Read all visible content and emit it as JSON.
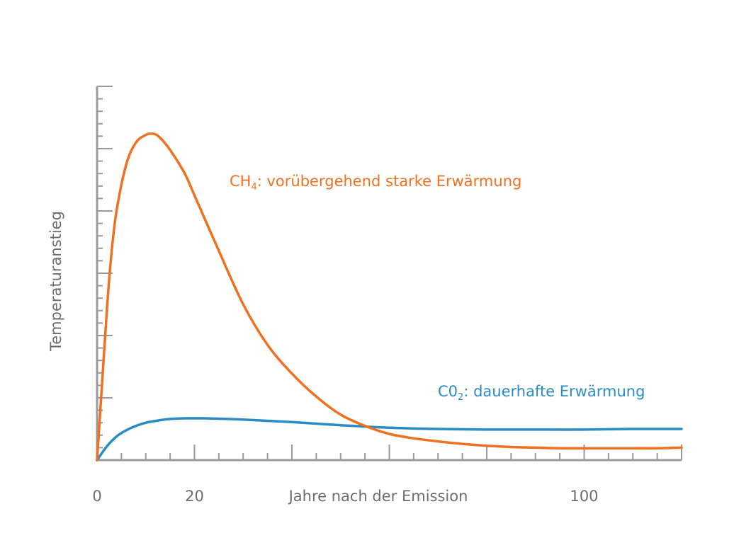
{
  "chart_data": {
    "type": "line",
    "xlabel": "Jahre nach der Emission",
    "ylabel": "Temperaturanstieg",
    "xlim": [
      0,
      120
    ],
    "ylim": [
      0,
      6
    ],
    "x_tick_labels": [
      {
        "value": 0,
        "label": "0"
      },
      {
        "value": 20,
        "label": "20"
      },
      {
        "value": 100,
        "label": "100"
      }
    ],
    "x_minor_step": 5,
    "x_major_step": 20,
    "y_minor_step": 0.2,
    "y_major_step": 1,
    "grid": false,
    "series": [
      {
        "name": "CH",
        "subscript": "4",
        "suffix": ": vorübergehend starke Erwärmung",
        "color": "#f07022",
        "x": [
          0,
          1,
          2,
          3,
          4,
          6,
          8,
          10,
          11,
          12,
          13,
          15,
          18,
          20,
          25,
          30,
          35,
          40,
          45,
          50,
          55,
          60,
          65,
          70,
          75,
          80,
          85,
          90,
          95,
          100,
          105,
          110,
          115,
          120
        ],
        "y": [
          0.0,
          1.2,
          2.4,
          3.35,
          4.0,
          4.75,
          5.1,
          5.22,
          5.24,
          5.23,
          5.17,
          4.98,
          4.6,
          4.25,
          3.36,
          2.5,
          1.85,
          1.39,
          1.02,
          0.73,
          0.55,
          0.42,
          0.35,
          0.3,
          0.26,
          0.23,
          0.21,
          0.2,
          0.19,
          0.19,
          0.19,
          0.19,
          0.19,
          0.2
        ]
      },
      {
        "name": "C0",
        "subscript": "2",
        "suffix": ": dauerhafte Erwärmung",
        "color": "#2a8cc4",
        "x": [
          0,
          2,
          4,
          6,
          8,
          10,
          12,
          15,
          18,
          20,
          22,
          25,
          30,
          40,
          50,
          60,
          70,
          80,
          90,
          100,
          110,
          120
        ],
        "y": [
          0.0,
          0.22,
          0.38,
          0.48,
          0.55,
          0.6,
          0.63,
          0.66,
          0.67,
          0.67,
          0.67,
          0.665,
          0.65,
          0.61,
          0.56,
          0.52,
          0.5,
          0.49,
          0.49,
          0.49,
          0.5,
          0.5
        ]
      }
    ]
  },
  "colors": {
    "axis": "#9a9a9a",
    "text": "#6d6d6d"
  }
}
